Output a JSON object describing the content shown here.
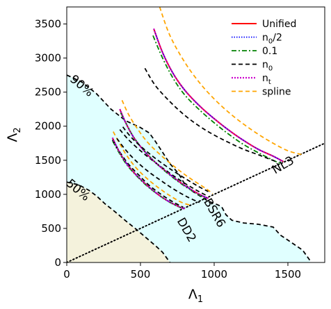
{
  "chart_data": {
    "type": "line",
    "xlabel_base": "Λ",
    "xlabel_sub": "1",
    "ylabel_base": "Λ",
    "ylabel_sub": "2",
    "xlim": [
      0,
      1750
    ],
    "ylim": [
      0,
      3750
    ],
    "xticks": [
      0,
      500,
      1000,
      1500
    ],
    "yticks": [
      0,
      500,
      1000,
      1500,
      2000,
      2500,
      3000,
      3500
    ],
    "legend_position": "top-right",
    "legend": [
      {
        "label": "Unified",
        "color": "#ff0000",
        "style": "solid"
      },
      {
        "label": "n0/2",
        "color": "#0000ff",
        "style": "dotted",
        "base": "n",
        "sub": "0",
        "suffix": "/2"
      },
      {
        "label": "0.1",
        "color": "#008000",
        "style": "dashdot"
      },
      {
        "label": "n0",
        "color": "#000000",
        "style": "dashed",
        "base": "n",
        "sub": "0"
      },
      {
        "label": "nt",
        "color": "#cc00cc",
        "style": "dotted-heavy",
        "base": "n",
        "sub": "t"
      },
      {
        "label": "spline",
        "color": "#ffa500",
        "style": "dashed"
      }
    ],
    "region_90": {
      "label": "90%",
      "fill": "#e0ffff",
      "boundary": [
        [
          0,
          2750
        ],
        [
          100,
          2650
        ],
        [
          200,
          2480
        ],
        [
          300,
          2250
        ],
        [
          400,
          2080
        ],
        [
          500,
          1980
        ],
        [
          560,
          1900
        ],
        [
          600,
          1780
        ],
        [
          640,
          1650
        ],
        [
          700,
          1450
        ],
        [
          760,
          1300
        ],
        [
          800,
          1150
        ],
        [
          850,
          1050
        ],
        [
          900,
          980
        ],
        [
          960,
          900
        ],
        [
          1020,
          850
        ],
        [
          1050,
          820
        ],
        [
          1080,
          700
        ],
        [
          1120,
          620
        ],
        [
          1200,
          580
        ],
        [
          1300,
          560
        ],
        [
          1400,
          520
        ],
        [
          1450,
          400
        ],
        [
          1520,
          300
        ],
        [
          1600,
          180
        ],
        [
          1650,
          30
        ],
        [
          1650,
          0
        ]
      ]
    },
    "region_50": {
      "label": "50%",
      "fill": "#f4f2dc",
      "boundary": [
        [
          0,
          1180
        ],
        [
          80,
          1140
        ],
        [
          150,
          1060
        ],
        [
          200,
          980
        ],
        [
          260,
          860
        ],
        [
          330,
          740
        ],
        [
          400,
          610
        ],
        [
          470,
          490
        ],
        [
          540,
          360
        ],
        [
          600,
          250
        ],
        [
          650,
          150
        ],
        [
          690,
          30
        ],
        [
          700,
          0
        ]
      ]
    },
    "diagonal": {
      "style": "dotted",
      "color": "#000000",
      "points": [
        [
          0,
          0
        ],
        [
          1750,
          1750
        ]
      ]
    },
    "eos_labels": [
      {
        "text": "NL3",
        "x": 1480,
        "y": 1380,
        "rotate": -30
      },
      {
        "text": "BSR6",
        "x": 980,
        "y": 700,
        "rotate": 60
      },
      {
        "text": "DD2",
        "x": 790,
        "y": 450,
        "rotate": 60
      }
    ],
    "region_labels": [
      {
        "text": "90%",
        "x": 85,
        "y": 2550,
        "rotate": 40
      },
      {
        "text": "50%",
        "x": 60,
        "y": 1020,
        "rotate": 40
      }
    ],
    "series": [
      {
        "name": "NL3 Unified",
        "legend": "Unified",
        "color": "#ff0000",
        "style": "solid",
        "points": [
          [
            590,
            3430
          ],
          [
            650,
            3080
          ],
          [
            720,
            2780
          ],
          [
            800,
            2530
          ],
          [
            900,
            2300
          ],
          [
            1000,
            2110
          ],
          [
            1100,
            1940
          ],
          [
            1200,
            1790
          ],
          [
            1300,
            1660
          ],
          [
            1400,
            1560
          ],
          [
            1470,
            1480
          ]
        ]
      },
      {
        "name": "NL3 n0/2",
        "legend": "n0/2",
        "color": "#0000ff",
        "style": "dotted",
        "points": [
          [
            590,
            3430
          ],
          [
            650,
            3080
          ],
          [
            720,
            2780
          ],
          [
            800,
            2530
          ],
          [
            900,
            2300
          ],
          [
            1000,
            2110
          ],
          [
            1100,
            1940
          ],
          [
            1200,
            1790
          ],
          [
            1300,
            1660
          ],
          [
            1400,
            1560
          ],
          [
            1470,
            1480
          ]
        ]
      },
      {
        "name": "NL3 0.1",
        "legend": "0.1",
        "color": "#008000",
        "style": "dashdot",
        "points": [
          [
            585,
            3330
          ],
          [
            650,
            3000
          ],
          [
            720,
            2710
          ],
          [
            800,
            2460
          ],
          [
            900,
            2240
          ],
          [
            1000,
            2050
          ],
          [
            1100,
            1880
          ],
          [
            1200,
            1730
          ],
          [
            1300,
            1610
          ],
          [
            1400,
            1500
          ],
          [
            1450,
            1450
          ]
        ]
      },
      {
        "name": "NL3 n0",
        "legend": "n0",
        "color": "#000000",
        "style": "dashed",
        "points": [
          [
            530,
            2850
          ],
          [
            600,
            2600
          ],
          [
            700,
            2360
          ],
          [
            800,
            2160
          ],
          [
            900,
            2000
          ],
          [
            1000,
            1870
          ],
          [
            1100,
            1760
          ],
          [
            1200,
            1660
          ],
          [
            1300,
            1580
          ],
          [
            1420,
            1480
          ]
        ]
      },
      {
        "name": "NL3 nt",
        "legend": "nt",
        "color": "#cc00cc",
        "style": "dotted-heavy",
        "points": [
          [
            590,
            3430
          ],
          [
            650,
            3080
          ],
          [
            720,
            2780
          ],
          [
            800,
            2530
          ],
          [
            900,
            2300
          ],
          [
            1000,
            2110
          ],
          [
            1100,
            1940
          ],
          [
            1200,
            1790
          ],
          [
            1300,
            1660
          ],
          [
            1400,
            1560
          ],
          [
            1470,
            1480
          ]
        ]
      },
      {
        "name": "NL3 spline",
        "legend": "spline",
        "color": "#ffa500",
        "style": "dashed",
        "points": [
          [
            630,
            3750
          ],
          [
            700,
            3330
          ],
          [
            800,
            2940
          ],
          [
            900,
            2640
          ],
          [
            1000,
            2400
          ],
          [
            1100,
            2200
          ],
          [
            1200,
            2030
          ],
          [
            1300,
            1880
          ],
          [
            1400,
            1750
          ],
          [
            1500,
            1640
          ],
          [
            1600,
            1580
          ]
        ]
      },
      {
        "name": "BSR6 Unified",
        "legend": "Unified",
        "color": "#ff0000",
        "style": "solid",
        "points": [
          [
            360,
            2250
          ],
          [
            400,
            2050
          ],
          [
            450,
            1850
          ],
          [
            520,
            1650
          ],
          [
            600,
            1470
          ],
          [
            700,
            1290
          ],
          [
            800,
            1130
          ],
          [
            900,
            1000
          ],
          [
            960,
            940
          ]
        ]
      },
      {
        "name": "BSR6 n0/2",
        "legend": "n0/2",
        "color": "#0000ff",
        "style": "dotted",
        "points": [
          [
            360,
            2250
          ],
          [
            400,
            2050
          ],
          [
            450,
            1850
          ],
          [
            520,
            1650
          ],
          [
            600,
            1470
          ],
          [
            700,
            1290
          ],
          [
            800,
            1130
          ],
          [
            900,
            1000
          ],
          [
            960,
            940
          ]
        ]
      },
      {
        "name": "BSR6 0.1",
        "legend": "0.1",
        "color": "#008000",
        "style": "dashdot",
        "points": [
          [
            365,
            2200
          ],
          [
            410,
            2010
          ],
          [
            460,
            1820
          ],
          [
            530,
            1630
          ],
          [
            610,
            1450
          ],
          [
            700,
            1280
          ],
          [
            800,
            1120
          ],
          [
            900,
            990
          ],
          [
            950,
            930
          ]
        ]
      },
      {
        "name": "BSR6 n0",
        "legend": "n0",
        "color": "#000000",
        "style": "dashed",
        "points": [
          [
            360,
            1950
          ],
          [
            420,
            1800
          ],
          [
            500,
            1640
          ],
          [
            580,
            1500
          ],
          [
            680,
            1340
          ],
          [
            780,
            1190
          ],
          [
            880,
            1060
          ],
          [
            950,
            980
          ]
        ]
      },
      {
        "name": "BSR6 nt",
        "legend": "nt",
        "color": "#cc00cc",
        "style": "dotted-heavy",
        "points": [
          [
            360,
            2250
          ],
          [
            400,
            2050
          ],
          [
            450,
            1850
          ],
          [
            520,
            1650
          ],
          [
            600,
            1470
          ],
          [
            700,
            1290
          ],
          [
            800,
            1130
          ],
          [
            900,
            1000
          ],
          [
            960,
            940
          ]
        ]
      },
      {
        "name": "BSR6 spline",
        "legend": "spline",
        "color": "#ffa500",
        "style": "dashed",
        "points": [
          [
            375,
            2380
          ],
          [
            420,
            2170
          ],
          [
            480,
            1960
          ],
          [
            550,
            1760
          ],
          [
            640,
            1570
          ],
          [
            740,
            1390
          ],
          [
            840,
            1230
          ],
          [
            940,
            1090
          ],
          [
            990,
            1010
          ]
        ]
      },
      {
        "name": "DD2 Unified",
        "legend": "Unified",
        "color": "#ff0000",
        "style": "solid",
        "points": [
          [
            310,
            1830
          ],
          [
            350,
            1650
          ],
          [
            400,
            1470
          ],
          [
            460,
            1310
          ],
          [
            530,
            1160
          ],
          [
            600,
            1030
          ],
          [
            680,
            910
          ],
          [
            760,
            820
          ],
          [
            800,
            790
          ]
        ]
      },
      {
        "name": "DD2 n0/2",
        "legend": "n0/2",
        "color": "#0000ff",
        "style": "dotted",
        "points": [
          [
            310,
            1830
          ],
          [
            350,
            1650
          ],
          [
            400,
            1470
          ],
          [
            460,
            1310
          ],
          [
            530,
            1160
          ],
          [
            600,
            1030
          ],
          [
            680,
            910
          ],
          [
            760,
            820
          ],
          [
            800,
            790
          ]
        ]
      },
      {
        "name": "DD2 0.1",
        "legend": "0.1",
        "color": "#008000",
        "style": "dashdot",
        "points": [
          [
            312,
            1780
          ],
          [
            355,
            1610
          ],
          [
            405,
            1440
          ],
          [
            465,
            1290
          ],
          [
            535,
            1140
          ],
          [
            605,
            1020
          ],
          [
            685,
            900
          ],
          [
            760,
            815
          ],
          [
            795,
            785
          ]
        ]
      },
      {
        "name": "DD2 n0",
        "legend": "n0",
        "color": "#000000",
        "style": "dashed",
        "points": [
          [
            310,
            1800
          ],
          [
            360,
            1620
          ],
          [
            420,
            1440
          ],
          [
            490,
            1280
          ],
          [
            560,
            1130
          ],
          [
            640,
            1000
          ],
          [
            720,
            890
          ],
          [
            790,
            810
          ]
        ]
      },
      {
        "name": "DD2 nt",
        "legend": "nt",
        "color": "#cc00cc",
        "style": "dotted-heavy",
        "points": [
          [
            310,
            1830
          ],
          [
            350,
            1650
          ],
          [
            400,
            1470
          ],
          [
            460,
            1310
          ],
          [
            530,
            1160
          ],
          [
            600,
            1030
          ],
          [
            680,
            910
          ],
          [
            760,
            820
          ],
          [
            800,
            790
          ]
        ]
      },
      {
        "name": "DD2 spline",
        "legend": "spline",
        "color": "#ffa500",
        "style": "dashed",
        "points": [
          [
            315,
            1920
          ],
          [
            360,
            1740
          ],
          [
            410,
            1560
          ],
          [
            470,
            1390
          ],
          [
            540,
            1240
          ],
          [
            620,
            1100
          ],
          [
            700,
            980
          ],
          [
            780,
            880
          ],
          [
            840,
            840
          ]
        ]
      },
      {
        "name": "mid n0 A",
        "legend": "n0",
        "color": "#000000",
        "style": "dashed",
        "points": [
          [
            340,
            1820
          ],
          [
            400,
            1650
          ],
          [
            470,
            1490
          ],
          [
            550,
            1340
          ],
          [
            640,
            1200
          ],
          [
            730,
            1070
          ],
          [
            820,
            960
          ],
          [
            900,
            880
          ]
        ]
      },
      {
        "name": "mid n0 B",
        "legend": "n0",
        "color": "#000000",
        "style": "dashed",
        "points": [
          [
            380,
            1990
          ],
          [
            440,
            1830
          ],
          [
            520,
            1670
          ],
          [
            600,
            1530
          ],
          [
            690,
            1390
          ],
          [
            790,
            1250
          ],
          [
            890,
            1120
          ],
          [
            960,
            1040
          ]
        ]
      }
    ]
  }
}
